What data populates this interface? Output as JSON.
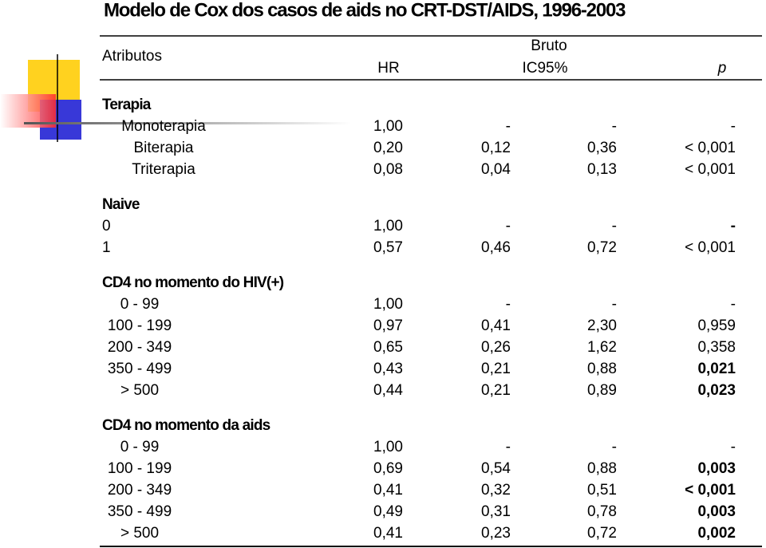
{
  "title": "Modelo de Cox dos casos de aids no CRT-DST/AIDS, 1996-2003",
  "header": {
    "attributes": "Atributos",
    "group": "Bruto",
    "hr": "HR",
    "ci": "IC95%",
    "p": "p"
  },
  "sections": [
    {
      "title": "Terapia",
      "rows": [
        {
          "label": "Monoterapia",
          "hr": "1,00",
          "low": "-",
          "high": "-",
          "p": "-",
          "p_bold": false
        },
        {
          "label": "Biterapia",
          "hr": "0,20",
          "low": "0,12",
          "high": "0,36",
          "p": "< 0,001",
          "p_bold": false
        },
        {
          "label": "Triterapia",
          "hr": "0,08",
          "low": "0,04",
          "high": "0,13",
          "p": "< 0,001",
          "p_bold": false
        }
      ]
    },
    {
      "title": "Naive",
      "rows": [
        {
          "label": "0",
          "hr": "1,00",
          "low": "-",
          "high": "-",
          "p": "-",
          "p_bold": true
        },
        {
          "label": "1",
          "hr": "0,57",
          "low": "0,46",
          "high": "0,72",
          "p": "< 0,001",
          "p_bold": false
        }
      ]
    },
    {
      "title": "CD4 no momento do HIV(+)",
      "rows": [
        {
          "label": "0 - 99",
          "hr": "1,00",
          "low": "-",
          "high": "-",
          "p": "-",
          "p_bold": false
        },
        {
          "label": "100 - 199",
          "hr": "0,97",
          "low": "0,41",
          "high": "2,30",
          "p": "0,959",
          "p_bold": false
        },
        {
          "label": "200 - 349",
          "hr": "0,65",
          "low": "0,26",
          "high": "1,62",
          "p": "0,358",
          "p_bold": false
        },
        {
          "label": "350 - 499",
          "hr": "0,43",
          "low": "0,21",
          "high": "0,88",
          "p": "0,021",
          "p_bold": true
        },
        {
          "label": "> 500",
          "hr": "0,44",
          "low": "0,21",
          "high": "0,89",
          "p": "0,023",
          "p_bold": true
        }
      ]
    },
    {
      "title": "CD4 no momento da aids",
      "rows": [
        {
          "label": "0 - 99",
          "hr": "1,00",
          "low": "-",
          "high": "-",
          "p": "-",
          "p_bold": false
        },
        {
          "label": "100 - 199",
          "hr": "0,69",
          "low": "0,54",
          "high": "0,88",
          "p": "0,003",
          "p_bold": true
        },
        {
          "label": "200 - 349",
          "hr": "0,41",
          "low": "0,32",
          "high": "0,51",
          "p": "< 0,001",
          "p_bold": true
        },
        {
          "label": "350 - 499",
          "hr": "0,49",
          "low": "0,31",
          "high": "0,78",
          "p": "0,003",
          "p_bold": true
        },
        {
          "label": "> 500",
          "hr": "0,41",
          "low": "0,23",
          "high": "0,72",
          "p": "0,002",
          "p_bold": true
        }
      ]
    }
  ]
}
